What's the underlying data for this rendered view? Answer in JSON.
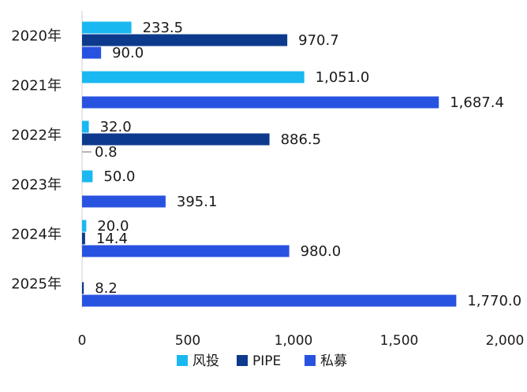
{
  "chart_data": {
    "type": "bar",
    "orientation": "horizontal",
    "categories": [
      "2020年",
      "2021年",
      "2022年",
      "2023年",
      "2024年",
      "2025年"
    ],
    "series": [
      {
        "name": "风投",
        "color": "#1ab8f0",
        "values": [
          233.5,
          1051.0,
          32.0,
          50.0,
          20.0,
          null
        ]
      },
      {
        "name": "PIPE",
        "color": "#0d3a8c",
        "values": [
          970.7,
          null,
          886.5,
          null,
          14.4,
          8.2
        ]
      },
      {
        "name": "私募",
        "color": "#2852e0",
        "values": [
          90.0,
          1687.4,
          0.8,
          395.1,
          980.0,
          1770.0
        ]
      }
    ],
    "data_labels": [
      [
        "233.5",
        "970.7",
        "90.0"
      ],
      [
        "1,051.0",
        null,
        "1,687.4"
      ],
      [
        "32.0",
        "886.5",
        "0.8"
      ],
      [
        "50.0",
        null,
        "395.1"
      ],
      [
        "20.0",
        "14.4",
        "980.0"
      ],
      [
        null,
        "8.2",
        "1,770.0"
      ]
    ],
    "x_ticks": [
      0,
      500,
      1000,
      1500,
      2000
    ],
    "x_tick_labels": [
      "0",
      "500",
      "1,000",
      "1,500",
      "2,000"
    ],
    "xlim": [
      0,
      2000
    ],
    "grid": false,
    "legend_position": "bottom",
    "title": "",
    "xlabel": "",
    "ylabel": ""
  }
}
